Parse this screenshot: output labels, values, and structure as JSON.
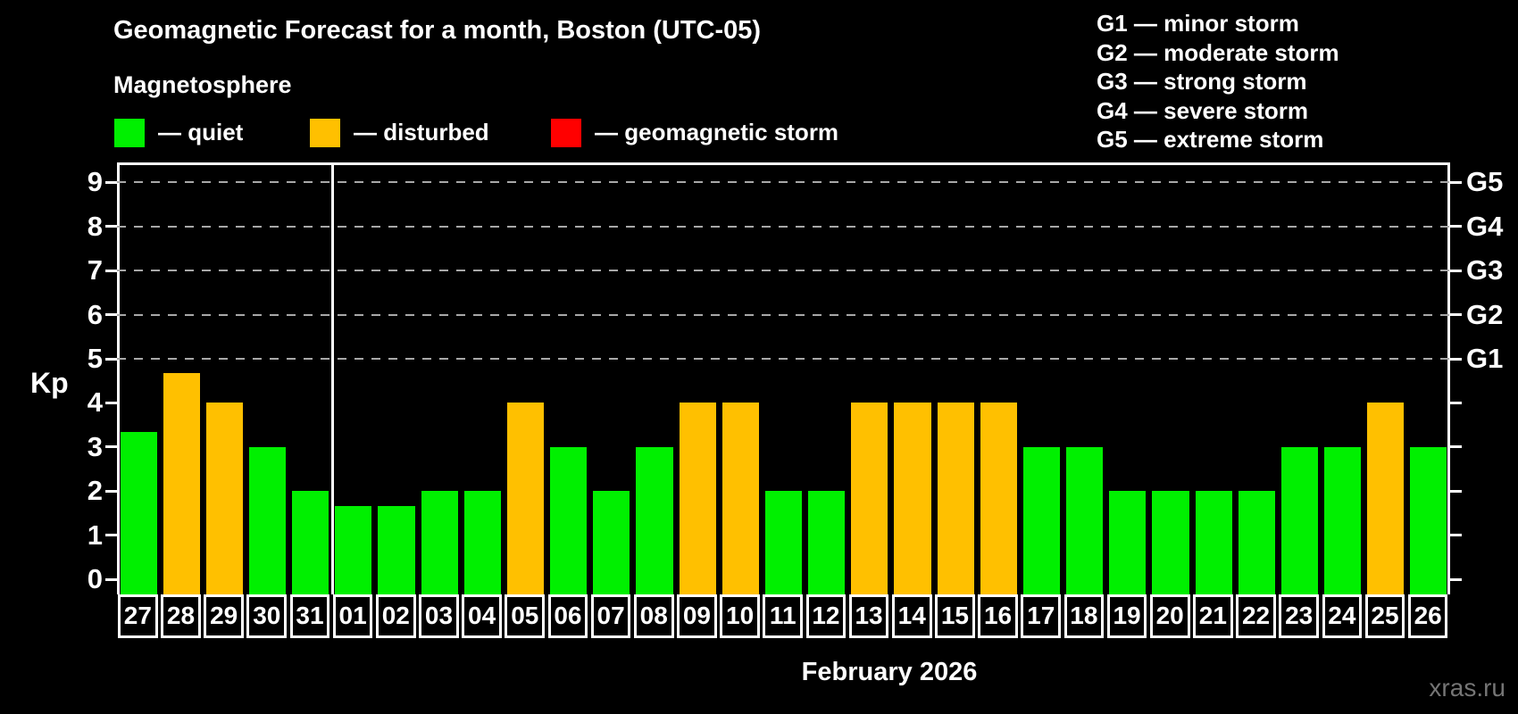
{
  "header": {
    "title": "Geomagnetic Forecast for a month, Boston (UTC-05)",
    "subtitle": "Magnetosphere"
  },
  "legend": {
    "items": [
      {
        "key": "quiet",
        "label": "— quiet",
        "color": "#00F000"
      },
      {
        "key": "disturbed",
        "label": "— disturbed",
        "color": "#FFC000"
      },
      {
        "key": "storm",
        "label": "— geomagnetic storm",
        "color": "#FF0000"
      }
    ]
  },
  "g_legend": {
    "lines": [
      "G1 — minor storm",
      "G2 — moderate storm",
      "G3 — strong storm",
      "G4 — severe storm",
      "G5 — extreme storm"
    ]
  },
  "chart_data": {
    "type": "bar",
    "title": "Geomagnetic Forecast for a month, Boston (UTC-05)",
    "ylabel": "Kp",
    "xlabel": "February 2026",
    "x_categories": [
      "27",
      "28",
      "29",
      "30",
      "31",
      "01",
      "02",
      "03",
      "04",
      "05",
      "06",
      "07",
      "08",
      "09",
      "10",
      "11",
      "12",
      "13",
      "14",
      "15",
      "16",
      "17",
      "18",
      "19",
      "20",
      "21",
      "22",
      "23",
      "24",
      "25",
      "26"
    ],
    "series": [
      {
        "name": "Kp forecast",
        "values": [
          3.33,
          4.67,
          4,
          3,
          2,
          1.67,
          1.67,
          2,
          2,
          4,
          3,
          2,
          3,
          4,
          4,
          2,
          2,
          4,
          4,
          4,
          4,
          3,
          3,
          2,
          2,
          2,
          2,
          3,
          3,
          4,
          3
        ],
        "status": [
          "quiet",
          "disturbed",
          "disturbed",
          "quiet",
          "quiet",
          "quiet",
          "quiet",
          "quiet",
          "quiet",
          "disturbed",
          "quiet",
          "quiet",
          "quiet",
          "disturbed",
          "disturbed",
          "quiet",
          "quiet",
          "disturbed",
          "disturbed",
          "disturbed",
          "disturbed",
          "quiet",
          "quiet",
          "quiet",
          "quiet",
          "quiet",
          "quiet",
          "quiet",
          "quiet",
          "disturbed",
          "quiet"
        ]
      }
    ],
    "ylim": [
      -0.4,
      9.4
    ],
    "yticks": [
      0,
      1,
      2,
      3,
      4,
      5,
      6,
      7,
      8,
      9
    ],
    "grid_levels": [
      5,
      6,
      7,
      8,
      9
    ],
    "right_axis": [
      {
        "kp": 5,
        "label": "G1"
      },
      {
        "kp": 6,
        "label": "G2"
      },
      {
        "kp": 7,
        "label": "G3"
      },
      {
        "kp": 8,
        "label": "G4"
      },
      {
        "kp": 9,
        "label": "G5"
      }
    ],
    "month_separator_after_index": 4,
    "bar_colors": {
      "quiet": "#00F000",
      "disturbed": "#FFC000",
      "storm": "#FF0000"
    },
    "legend_position": "top-left",
    "grid": "dashed horizontal lines at G-storm levels only"
  },
  "footer": {
    "xaxis_title": "February 2026",
    "watermark": "xras.ru"
  },
  "colors": {
    "background": "#000000",
    "axis": "#FFFFFF",
    "grid": "#A8A8A8",
    "text": "#FFFFFF",
    "watermark": "#757575"
  }
}
